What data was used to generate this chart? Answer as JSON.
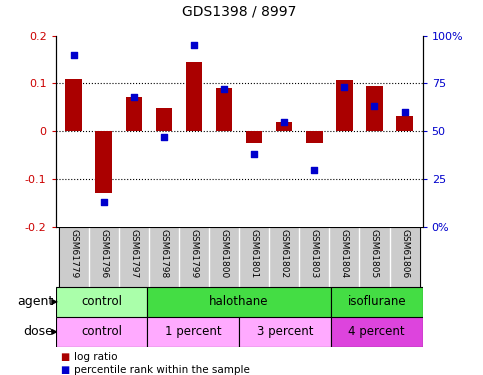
{
  "title": "GDS1398 / 8997",
  "samples": [
    "GSM61779",
    "GSM61796",
    "GSM61797",
    "GSM61798",
    "GSM61799",
    "GSM61800",
    "GSM61801",
    "GSM61802",
    "GSM61803",
    "GSM61804",
    "GSM61805",
    "GSM61806"
  ],
  "log_ratio": [
    0.11,
    -0.13,
    0.072,
    0.048,
    0.145,
    0.09,
    -0.025,
    0.02,
    -0.025,
    0.108,
    0.095,
    0.032
  ],
  "percentile_rank": [
    90,
    13,
    68,
    47,
    95,
    72,
    38,
    55,
    30,
    73,
    63,
    60
  ],
  "bar_color": "#AA0000",
  "dot_color": "#0000CC",
  "left_ylim": [
    -0.2,
    0.2
  ],
  "right_ylim": [
    0,
    100
  ],
  "left_yticks": [
    -0.2,
    -0.1,
    0.0,
    0.1,
    0.2
  ],
  "right_yticks": [
    0,
    25,
    50,
    75,
    100
  ],
  "right_yticklabels": [
    "0%",
    "25",
    "50",
    "75",
    "100%"
  ],
  "hlines": [
    0.1,
    0.0,
    -0.1
  ],
  "agent_groups": [
    {
      "label": "control",
      "start": 0,
      "end": 3,
      "color": "#AAFFAA"
    },
    {
      "label": "halothane",
      "start": 3,
      "end": 9,
      "color": "#44DD44"
    },
    {
      "label": "isoflurane",
      "start": 9,
      "end": 12,
      "color": "#44DD44"
    }
  ],
  "dose_groups": [
    {
      "label": "control",
      "start": 0,
      "end": 3,
      "color": "#FFAAFF"
    },
    {
      "label": "1 percent",
      "start": 3,
      "end": 6,
      "color": "#FFAAFF"
    },
    {
      "label": "3 percent",
      "start": 6,
      "end": 9,
      "color": "#FFAAFF"
    },
    {
      "label": "4 percent",
      "start": 9,
      "end": 12,
      "color": "#DD44DD"
    }
  ],
  "legend_bar_label": "log ratio",
  "legend_dot_label": "percentile rank within the sample",
  "agent_label": "agent",
  "dose_label": "dose",
  "title_color": "#000000",
  "left_tick_color": "#CC0000",
  "right_tick_color": "#0000CC",
  "bg_color": "#FFFFFF",
  "figsize": [
    4.83,
    3.75
  ],
  "dpi": 100
}
